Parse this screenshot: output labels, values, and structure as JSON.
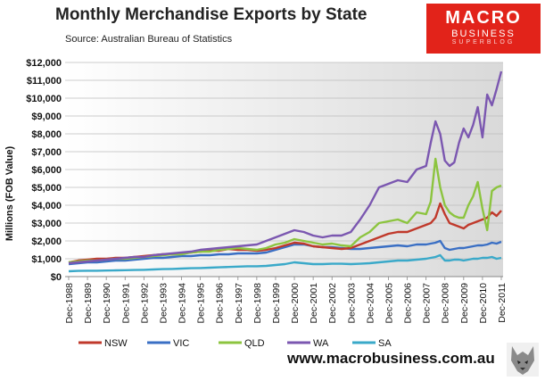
{
  "title": "Monthly Merchandise Exports by State",
  "subtitle": "Source:  Australian Bureau of Statistics",
  "logo": {
    "line1": "MACRO",
    "line2": "BUSINESS",
    "line3": "SUPERBLOG"
  },
  "website": "www.macrobusiness.com.au",
  "colors": {
    "NSW": "#c0392b",
    "VIC": "#3a6fc4",
    "QLD": "#8cc43f",
    "WA": "#7b57b0",
    "SA": "#3aa9c9",
    "logo_bg": "#e2231a"
  },
  "chart_data": {
    "type": "line",
    "title": "Monthly Merchandise Exports by State",
    "subtitle": "Source:  Australian Bureau of Statistics",
    "ylabel": "Millions (FOB Value)",
    "xlabel": "",
    "ylim": [
      0,
      12000
    ],
    "yticks": [
      0,
      1000,
      2000,
      3000,
      4000,
      5000,
      6000,
      7000,
      8000,
      9000,
      10000,
      11000,
      12000
    ],
    "ytick_labels": [
      "$0",
      "$1,000",
      "$2,000",
      "$3,000",
      "$4,000",
      "$5,000",
      "$6,000",
      "$7,000",
      "$8,000",
      "$9,000",
      "$10,000",
      "$11,000",
      "$12,000"
    ],
    "xtick_labels": [
      "Dec-1988",
      "Dec-1989",
      "Dec-1990",
      "Dec-1991",
      "Dec-1992",
      "Dec-1993",
      "Dec-1994",
      "Dec-1995",
      "Dec-1996",
      "Dec-1997",
      "Dec-1998",
      "Dec-1999",
      "Dec-2000",
      "Dec-2001",
      "Dec-2002",
      "Dec-2003",
      "Dec-2004",
      "Dec-2005",
      "Dec-2006",
      "Dec-2007",
      "Dec-2008",
      "Dec-2009",
      "Dec-2010",
      "Dec-2011"
    ],
    "grid": "horizontal",
    "legend": "bottom",
    "x": [
      "Dec-1988",
      "Jun-1989",
      "Dec-1989",
      "Jun-1990",
      "Dec-1990",
      "Jun-1991",
      "Dec-1991",
      "Jun-1992",
      "Dec-1992",
      "Jun-1993",
      "Dec-1993",
      "Jun-1994",
      "Dec-1994",
      "Jun-1995",
      "Dec-1995",
      "Jun-1996",
      "Dec-1996",
      "Jun-1997",
      "Dec-1997",
      "Jun-1998",
      "Dec-1998",
      "Jun-1999",
      "Dec-1999",
      "Jun-2000",
      "Dec-2000",
      "Jun-2001",
      "Dec-2001",
      "Jun-2002",
      "Dec-2002",
      "Jun-2003",
      "Dec-2003",
      "Jun-2004",
      "Dec-2004",
      "Jun-2005",
      "Dec-2005",
      "Jun-2006",
      "Dec-2006",
      "Jun-2007",
      "Dec-2007",
      "Mar-2008",
      "Jun-2008",
      "Sep-2008",
      "Dec-2008",
      "Mar-2009",
      "Jun-2009",
      "Sep-2009",
      "Dec-2009",
      "Mar-2010",
      "Jun-2010",
      "Sep-2010",
      "Dec-2010",
      "Mar-2011",
      "Jun-2011",
      "Sep-2011",
      "Dec-2011"
    ],
    "series": [
      {
        "name": "NSW",
        "values": [
          800,
          900,
          950,
          1000,
          1000,
          1050,
          1050,
          1100,
          1150,
          1200,
          1250,
          1250,
          1300,
          1350,
          1400,
          1450,
          1450,
          1550,
          1500,
          1500,
          1450,
          1500,
          1600,
          1750,
          1900,
          1850,
          1700,
          1650,
          1600,
          1550,
          1600,
          1800,
          2000,
          2200,
          2400,
          2500,
          2500,
          2700,
          2900,
          3000,
          3300,
          4100,
          3500,
          3000,
          2900,
          2800,
          2700,
          2900,
          3000,
          3100,
          3200,
          3300,
          3600,
          3400,
          3700
        ]
      },
      {
        "name": "VIC",
        "values": [
          700,
          750,
          800,
          800,
          850,
          900,
          900,
          950,
          1000,
          1050,
          1050,
          1100,
          1150,
          1150,
          1200,
          1200,
          1250,
          1250,
          1300,
          1300,
          1300,
          1350,
          1500,
          1650,
          1800,
          1800,
          1700,
          1650,
          1650,
          1600,
          1550,
          1550,
          1600,
          1650,
          1700,
          1750,
          1700,
          1800,
          1800,
          1850,
          1900,
          2000,
          1600,
          1500,
          1550,
          1600,
          1600,
          1650,
          1700,
          1750,
          1750,
          1800,
          1900,
          1850,
          1950
        ]
      },
      {
        "name": "QLD",
        "values": [
          800,
          850,
          900,
          900,
          950,
          1000,
          1000,
          1050,
          1100,
          1150,
          1200,
          1250,
          1250,
          1350,
          1400,
          1400,
          1500,
          1550,
          1600,
          1550,
          1500,
          1600,
          1800,
          1900,
          2100,
          2000,
          1900,
          1800,
          1850,
          1750,
          1700,
          2200,
          2500,
          3000,
          3100,
          3200,
          3000,
          3600,
          3500,
          4200,
          6600,
          5000,
          4000,
          3600,
          3400,
          3300,
          3300,
          4000,
          4500,
          5300,
          3800,
          2600,
          4800,
          5000,
          5100
        ]
      },
      {
        "name": "WA",
        "values": [
          750,
          800,
          850,
          900,
          950,
          1000,
          1050,
          1100,
          1100,
          1200,
          1250,
          1300,
          1350,
          1400,
          1500,
          1550,
          1600,
          1650,
          1700,
          1750,
          1800,
          2000,
          2200,
          2400,
          2600,
          2500,
          2300,
          2200,
          2300,
          2300,
          2500,
          3200,
          4000,
          5000,
          5200,
          5400,
          5300,
          6000,
          6200,
          7500,
          8700,
          8000,
          6500,
          6200,
          6400,
          7500,
          8300,
          7800,
          8500,
          9500,
          7800,
          10200,
          9600,
          10500,
          11500
        ]
      },
      {
        "name": "SA",
        "values": [
          300,
          320,
          330,
          330,
          340,
          350,
          360,
          370,
          380,
          400,
          420,
          430,
          450,
          470,
          480,
          500,
          520,
          540,
          560,
          580,
          580,
          600,
          650,
          700,
          800,
          750,
          700,
          700,
          720,
          720,
          700,
          720,
          750,
          800,
          850,
          900,
          900,
          950,
          1000,
          1050,
          1100,
          1200,
          900,
          900,
          950,
          950,
          900,
          950,
          1000,
          1000,
          1050,
          1050,
          1100,
          1000,
          1050
        ]
      }
    ]
  }
}
